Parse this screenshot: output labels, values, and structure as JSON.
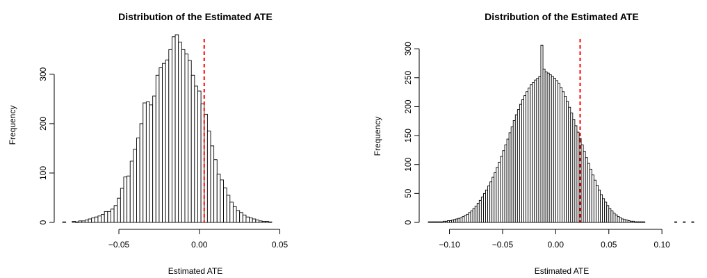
{
  "chart_data": [
    {
      "type": "bar",
      "title": "Distribution of the Estimated ATE",
      "xlabel": "Estimated ATE",
      "ylabel": "Frequency",
      "xlim": [
        -0.085,
        0.08
      ],
      "ylim": [
        0,
        380
      ],
      "x_ticks": [
        -0.05,
        0.0,
        0.05
      ],
      "x_tick_labels": [
        "−0.05",
        "0.00",
        "0.05"
      ],
      "y_ticks": [
        0,
        100,
        200,
        300
      ],
      "y_tick_labels": [
        "0",
        "100",
        "200",
        "300"
      ],
      "bin_start": -0.085,
      "bin_width": 0.002,
      "counts": [
        1,
        0,
        0,
        2,
        1,
        3,
        3,
        5,
        7,
        9,
        11,
        13,
        16,
        22,
        22,
        27,
        34,
        49,
        69,
        92,
        94,
        124,
        148,
        171,
        200,
        242,
        244,
        238,
        256,
        298,
        313,
        322,
        329,
        350,
        376,
        380,
        365,
        350,
        341,
        328,
        298,
        276,
        266,
        240,
        219,
        185,
        155,
        127,
        98,
        86,
        70,
        55,
        41,
        32,
        24,
        20,
        15,
        11,
        9,
        7,
        5,
        3,
        2,
        2,
        1
      ],
      "reference_line": {
        "x": 0.003,
        "color": "#ff0000",
        "style": "dashed"
      }
    },
    {
      "type": "bar",
      "title": "Distribution of the Estimated ATE",
      "xlabel": "Estimated ATE",
      "ylabel": "Frequency",
      "xlim": [
        -0.12,
        0.13
      ],
      "ylim": [
        0,
        305
      ],
      "x_ticks": [
        -0.1,
        -0.05,
        0.0,
        0.05,
        0.1
      ],
      "x_tick_labels": [
        "−0.10",
        "−0.05",
        "0.00",
        "0.05",
        "0.10"
      ],
      "y_ticks": [
        0,
        50,
        100,
        150,
        200,
        250,
        300
      ],
      "y_tick_labels": [
        "0",
        "50",
        "100",
        "150",
        "200",
        "250",
        "300"
      ],
      "bin_start": -0.12,
      "bin_width": 0.002,
      "counts": [
        1,
        1,
        1,
        1,
        1,
        1,
        1,
        2,
        2,
        3,
        3,
        4,
        5,
        6,
        7,
        8,
        10,
        12,
        14,
        17,
        20,
        24,
        28,
        33,
        38,
        44,
        50,
        56,
        63,
        70,
        78,
        86,
        95,
        104,
        114,
        124,
        134,
        144,
        155,
        165,
        176,
        186,
        195,
        204,
        212,
        219,
        226,
        232,
        238,
        242,
        246,
        249,
        252,
        306,
        265,
        260,
        258,
        255,
        252,
        249,
        245,
        240,
        233,
        226,
        218,
        209,
        199,
        189,
        178,
        167,
        156,
        145,
        134,
        123,
        112,
        102,
        92,
        82,
        73,
        64,
        56,
        48,
        41,
        35,
        29,
        24,
        20,
        16,
        13,
        10,
        8,
        6,
        5,
        4,
        3,
        2,
        2,
        1,
        1,
        1,
        1,
        1,
        0,
        0,
        0,
        0,
        0,
        0,
        0,
        0,
        0,
        0,
        0,
        0,
        0,
        0,
        1,
        0,
        0,
        0,
        1,
        0,
        0,
        0,
        1
      ],
      "reference_line": {
        "x": 0.023,
        "color": "#ff0000",
        "style": "dashed"
      }
    }
  ]
}
